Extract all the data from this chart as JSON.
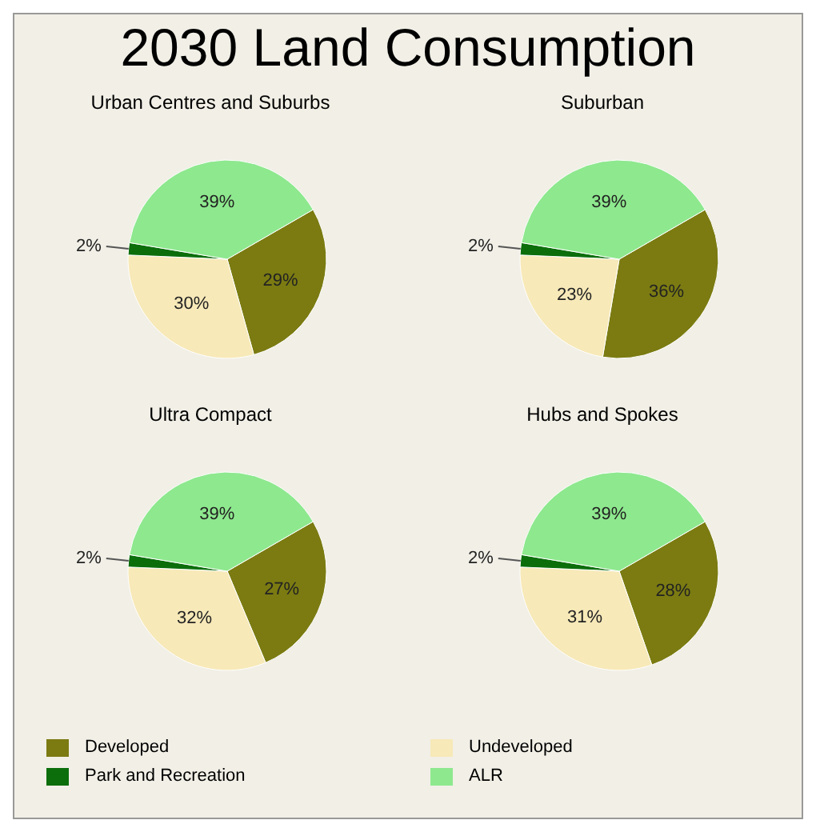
{
  "chart_data": [
    {
      "type": "pie",
      "title": "2030 Land Consumption",
      "subtitle": "Urban Centres and Suburbs",
      "categories": [
        "Developed",
        "Undeveloped",
        "Park and Recreation",
        "ALR"
      ],
      "values": [
        29,
        30,
        2,
        39
      ],
      "colors": [
        "#7b7b12",
        "#f7e9b8",
        "#0b6e0b",
        "#8ee88e"
      ],
      "value_labels": [
        "29%",
        "30%",
        "2%",
        "39%"
      ],
      "legend": "bottom"
    },
    {
      "type": "pie",
      "subtitle": "Suburban",
      "categories": [
        null,
        null,
        null,
        null
      ],
      "values": [
        36,
        23,
        2,
        39
      ],
      "colors": [
        "#7b7b12",
        "#f7e9b8",
        "#0b6e0b",
        "#8ee88e"
      ],
      "value_labels": [
        "36%",
        "23%",
        "2%",
        "39%"
      ]
    },
    {
      "type": "pie",
      "subtitle": "Ultra Compact",
      "categories": [
        null,
        null,
        null,
        null
      ],
      "values": [
        27,
        32,
        2,
        39
      ],
      "colors": [
        "#7b7b12",
        "#f7e9b8",
        "#0b6e0b",
        "#8ee88e"
      ],
      "value_labels": [
        "27%",
        "32%",
        "2%",
        "39%"
      ]
    },
    {
      "type": "pie",
      "subtitle": "Hubs and Spokes",
      "categories": [
        null,
        null,
        null,
        null
      ],
      "values": [
        28,
        31,
        2,
        39
      ],
      "colors": [
        "#7b7b12",
        "#f7e9b8",
        "#0b6e0b",
        "#8ee88e"
      ],
      "value_labels": [
        "28%",
        "31%",
        "2%",
        "39%"
      ]
    }
  ]
}
